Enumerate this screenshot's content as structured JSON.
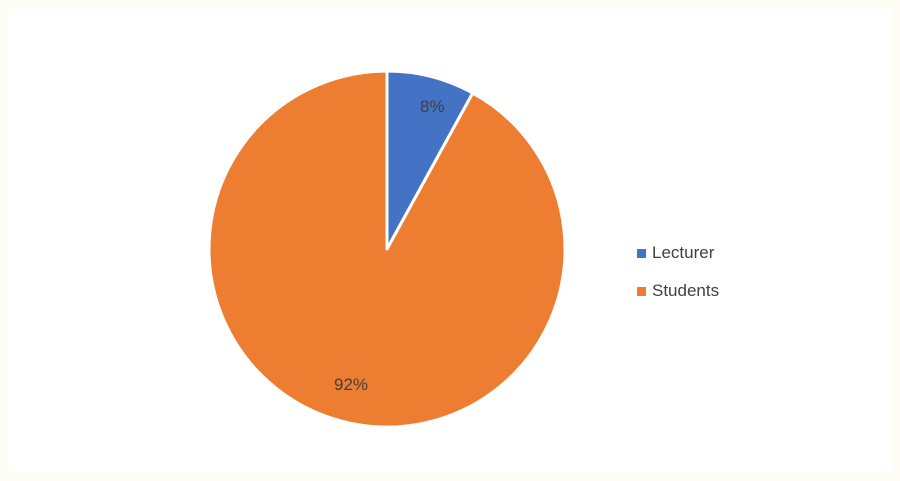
{
  "chart_data": {
    "type": "pie",
    "title": "",
    "categories": [
      "Lecturer",
      "Students"
    ],
    "values": [
      8,
      92
    ],
    "data_labels": [
      "8%",
      "92%"
    ],
    "colors": [
      "#4472c4",
      "#ed7d31"
    ],
    "legend_position": "right"
  },
  "legend": {
    "items": [
      {
        "label": "Lecturer",
        "color": "#4472c4"
      },
      {
        "label": "Students",
        "color": "#ed7d31"
      }
    ]
  }
}
